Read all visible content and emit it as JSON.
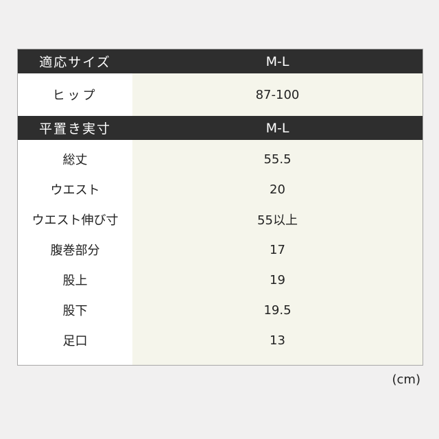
{
  "section1": {
    "header_label": "適応サイズ",
    "header_size": "M-L",
    "rows": [
      {
        "label": "ヒップ",
        "value": "87-100"
      }
    ]
  },
  "section2": {
    "header_label": "平置き実寸",
    "header_size": "M-L",
    "rows": [
      {
        "label": "総丈",
        "value": "55.5"
      },
      {
        "label": "ウエスト",
        "value": "20"
      },
      {
        "label": "ウエスト伸び寸",
        "value": "55以上"
      },
      {
        "label": "腹巻部分",
        "value": "17"
      },
      {
        "label": "股上",
        "value": "19"
      },
      {
        "label": "股下",
        "value": "19.5"
      },
      {
        "label": "足口",
        "value": "13"
      }
    ]
  },
  "unit": "(cm)",
  "colors": {
    "header_bg": "#2e2e2e",
    "value_bg": "#f5f5eb",
    "background": "#f1f0f0"
  }
}
